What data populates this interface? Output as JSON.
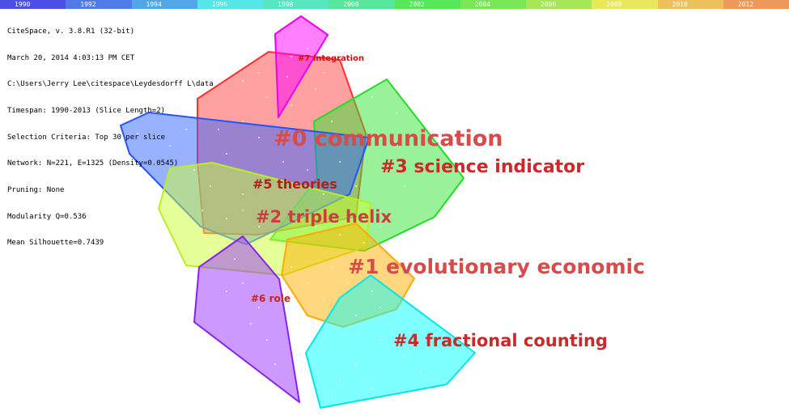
{
  "timeline": {
    "segments": [
      {
        "label": "1990",
        "color": "#4b4fe8"
      },
      {
        "label": "1992",
        "color": "#4f7ae8"
      },
      {
        "label": "1994",
        "color": "#52a6e6"
      },
      {
        "label": "1996",
        "color": "#55e7e8"
      },
      {
        "label": "1998",
        "color": "#56e7c2"
      },
      {
        "label": "2000",
        "color": "#57e79a"
      },
      {
        "label": "2002",
        "color": "#57e75a"
      },
      {
        "label": "2004",
        "color": "#7ae757"
      },
      {
        "label": "2006",
        "color": "#a6e757"
      },
      {
        "label": "2008",
        "color": "#e8e85a"
      },
      {
        "label": "2010",
        "color": "#ecc05c"
      },
      {
        "label": "2012",
        "color": "#ec9a5c"
      }
    ]
  },
  "info": {
    "lines": [
      "CiteSpace, v. 3.8.R1 (32-bit)",
      "March 20, 2014 4:03:13 PM CET",
      "C:\\Users\\Jerry Lee\\citespace\\Leydesdorff L\\data",
      "Timespan: 1990-2013 (Slice Length=2)",
      "Selection Criteria: Top 30 per slice",
      "Network: N=221, E=1325 (Density=0.0545)",
      "Pruning: None",
      "Modularity Q=0.536",
      "Mean Silhouette=0.7439"
    ]
  },
  "clusters": [
    {
      "id": "c0",
      "label": "#0 communication",
      "fill": "#ff4444",
      "stroke": "#ff3030",
      "label_color": "#d94a4a"
    },
    {
      "id": "c3",
      "label": "#3 science indicator",
      "fill": "#33e633",
      "stroke": "#22dd22",
      "label_color": "#cc2a2a"
    },
    {
      "id": "c5",
      "label": "#5 theories",
      "fill": "#3366ff",
      "stroke": "#2255ff",
      "label_color": "#b01e1e"
    },
    {
      "id": "c2",
      "label": "#2 triple helix",
      "fill": "#ccff33",
      "stroke": "#bbee22",
      "label_color": "#c94040"
    },
    {
      "id": "c1",
      "label": "#1 evolutionary economic",
      "fill": "#ffb000",
      "stroke": "#ffaa00",
      "label_color": "#d94a4a"
    },
    {
      "id": "c6",
      "label": "#6 role",
      "fill": "#9933ff",
      "stroke": "#8822ee",
      "label_color": "#cc2222"
    },
    {
      "id": "c4",
      "label": "#4 fractional counting",
      "fill": "#00ffff",
      "stroke": "#00e5e5",
      "label_color": "#c92a2a"
    },
    {
      "id": "c7",
      "label": "#7 integration",
      "fill": "#ff00ff",
      "stroke": "#ee00ee",
      "label_color": "#cc1111"
    }
  ]
}
